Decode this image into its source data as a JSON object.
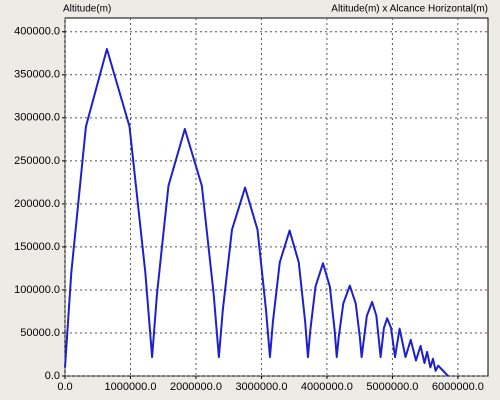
{
  "chart_data": {
    "type": "line",
    "title": "Altitude(m) x Alcance Horizontal(m)",
    "y_label": "Altitude(m)",
    "xlim": [
      0,
      6460000
    ],
    "ylim": [
      0,
      416000
    ],
    "grid": true,
    "xticks": [
      {
        "value": 0,
        "label": "0.0"
      },
      {
        "value": 1000000,
        "label": "1000000.0"
      },
      {
        "value": 2000000,
        "label": "2000000.0"
      },
      {
        "value": 3000000,
        "label": "3000000.0"
      },
      {
        "value": 4000000,
        "label": "4000000.0"
      },
      {
        "value": 5000000,
        "label": "5000000.0"
      },
      {
        "value": 6000000,
        "label": "6000000.0"
      }
    ],
    "yticks": [
      {
        "value": 0,
        "label": "0.0"
      },
      {
        "value": 50000,
        "label": "50000.0"
      },
      {
        "value": 100000,
        "label": "100000.0"
      },
      {
        "value": 150000,
        "label": "150000.0"
      },
      {
        "value": 200000,
        "label": "200000.0"
      },
      {
        "value": 250000,
        "label": "250000.0"
      },
      {
        "value": 300000,
        "label": "300000.0"
      },
      {
        "value": 350000,
        "label": "350000.0"
      },
      {
        "value": 400000,
        "label": "400000.0"
      }
    ],
    "x": [
      0,
      96000,
      320000,
      640000,
      985000,
      1227000,
      1330000,
      1405000,
      1580000,
      1830000,
      2090000,
      2270000,
      2350000,
      2410000,
      2550000,
      2750000,
      2940000,
      3070000,
      3130000,
      3175000,
      3280000,
      3430000,
      3570000,
      3668000,
      3710000,
      3745000,
      3825000,
      3940000,
      4045000,
      4119000,
      4150000,
      4180000,
      4250000,
      4350000,
      4440000,
      4503000,
      4530000,
      4610000,
      4690000,
      4755000,
      4820000,
      4870000,
      4920000,
      4980000,
      5040000,
      5110000,
      5200000,
      5280000,
      5360000,
      5430000,
      5490000,
      5530000,
      5580000,
      5620000,
      5660000,
      5700000,
      5850000
    ],
    "series": [
      {
        "name": "Altitude(m)",
        "color": "#1f1fd0",
        "values": [
          10000,
          120000,
          290000,
          380000,
          290000,
          120000,
          22000,
          95500,
          221000,
          287000,
          221000,
          95500,
          22000,
          76700,
          170000,
          219000,
          170000,
          76700,
          22000,
          62800,
          132000,
          169000,
          132000,
          62800,
          22000,
          52250,
          103750,
          131000,
          103750,
          52250,
          22000,
          45000,
          84250,
          105000,
          84250,
          45000,
          22000,
          70000,
          86000,
          70000,
          22000,
          55750,
          67000,
          55750,
          22000,
          55000,
          22000,
          42000,
          18000,
          35000,
          15000,
          28000,
          10000,
          20000,
          6000,
          12000,
          0
        ]
      }
    ]
  }
}
